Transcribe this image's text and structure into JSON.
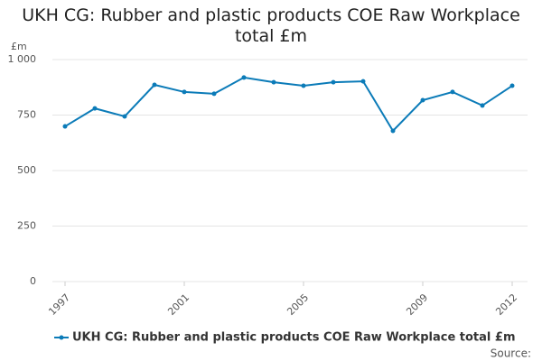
{
  "chart_data": {
    "type": "line",
    "title": "UKH CG: Rubber and plastic products COE Raw Workplace total £m",
    "y_label": "£m",
    "source": "Source:",
    "x": [
      1997,
      1998,
      1999,
      2000,
      2001,
      2002,
      2003,
      2004,
      2005,
      2006,
      2007,
      2008,
      2009,
      2010,
      2011,
      2012
    ],
    "series": [
      {
        "name": "UKH CG: Rubber and plastic products COE Raw Workplace total £m",
        "color": "#0b7bb8",
        "values": [
          699,
          780,
          744,
          886,
          854,
          846,
          919,
          898,
          882,
          898,
          902,
          679,
          817,
          854,
          793,
          882
        ]
      }
    ],
    "xlim": [
      1997,
      2012
    ],
    "xticks": [
      1997,
      2001,
      2005,
      2009,
      2012
    ],
    "ylim": [
      0,
      1000
    ],
    "yticks": [
      0,
      250,
      500,
      750,
      {
        "value": 1000,
        "label": "1 000"
      }
    ],
    "grid": true
  }
}
